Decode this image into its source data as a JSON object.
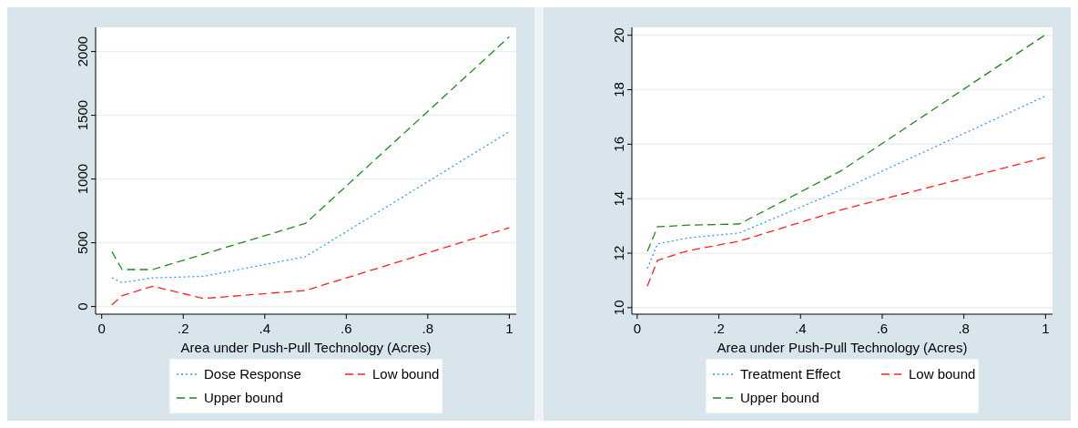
{
  "chart_data": [
    {
      "type": "line",
      "xlabel": "Area under Push-Pull Technology (Acres)",
      "x": [
        0.025,
        0.05,
        0.125,
        0.25,
        0.5,
        1
      ],
      "xlim": [
        -0.015,
        1.017
      ],
      "xticks": [
        {
          "value": 0,
          "label": "0"
        },
        {
          "value": 0.2,
          "label": ".2"
        },
        {
          "value": 0.4,
          "label": ".4"
        },
        {
          "value": 0.6,
          "label": ".6"
        },
        {
          "value": 0.8,
          "label": ".8"
        },
        {
          "value": 1,
          "label": "1"
        }
      ],
      "ylim": [
        -60,
        2190
      ],
      "yticks": [
        0,
        500,
        1000,
        1500,
        2000
      ],
      "grid": "y",
      "legend": "bottom",
      "series": [
        {
          "name": "Dose Response",
          "color": "#3399ff",
          "line_style": "dotted",
          "values": [
            225,
            188,
            225,
            237,
            391,
            1372
          ]
        },
        {
          "name": "Low bound",
          "color": "#ff2020",
          "line_style": "dashed",
          "values": [
            14,
            85,
            159,
            63,
            126,
            618
          ]
        },
        {
          "name": "Upper bound",
          "color": "#1a8c1a",
          "line_style": "dashed",
          "values": [
            430,
            290,
            290,
            411,
            652,
            2116
          ]
        }
      ]
    },
    {
      "type": "line",
      "xlabel": "Area under Push-Pull Technology (Acres)",
      "x": [
        0.025,
        0.05,
        0.125,
        0.25,
        0.5,
        1
      ],
      "xlim": [
        -0.013,
        1.017
      ],
      "xticks": [
        {
          "value": 0,
          "label": "0"
        },
        {
          "value": 0.2,
          "label": ".2"
        },
        {
          "value": 0.4,
          "label": ".4"
        },
        {
          "value": 0.6,
          "label": ".6"
        },
        {
          "value": 0.8,
          "label": ".8"
        },
        {
          "value": 1,
          "label": "1"
        }
      ],
      "ylim": [
        9.76,
        20.29
      ],
      "yticks": [
        10,
        12,
        14,
        16,
        18,
        20
      ],
      "grid": "y",
      "legend": "bottom",
      "series": [
        {
          "name": "Treatment Effect",
          "color": "#3399ff",
          "line_style": "dotted",
          "values": [
            11.44,
            12.34,
            12.56,
            12.74,
            14.32,
            17.77
          ]
        },
        {
          "name": "Low bound",
          "color": "#ff2020",
          "line_style": "dashed",
          "values": [
            10.79,
            11.74,
            12.09,
            12.44,
            13.59,
            15.52
          ]
        },
        {
          "name": "Upper bound",
          "color": "#1a8c1a",
          "line_style": "dashed",
          "values": [
            12.07,
            12.97,
            13.03,
            13.07,
            15.03,
            20.02
          ]
        }
      ]
    }
  ]
}
